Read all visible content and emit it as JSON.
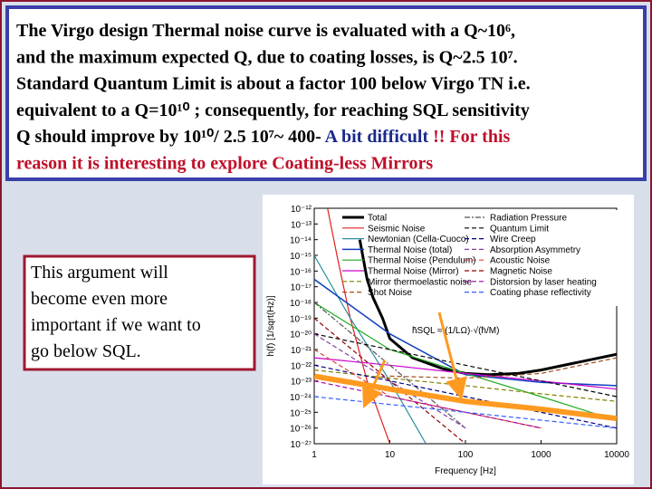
{
  "text_box": {
    "lines": [
      {
        "runs": [
          {
            "text": "The Virgo design Thermal noise curve is evaluated with a Q~10⁶,",
            "color": "#000000"
          }
        ]
      },
      {
        "runs": [
          {
            "text": "and the maximum expected Q, due to coating losses, is Q~2.5 10⁷.",
            "color": "#000000"
          }
        ]
      },
      {
        "runs": [
          {
            "text": "Standard Quantum Limit is about a factor 100 below Virgo TN i.e.",
            "color": "#000000"
          }
        ]
      },
      {
        "runs": [
          {
            "text": "equivalent to a Q=10¹⁰ ; consequently, for reaching SQL sensitivity",
            "color": "#000000"
          }
        ]
      },
      {
        "runs": [
          {
            "text": "Q should improve by 10¹⁰/ 2.5 10⁷~ 400- ",
            "color": "#000000"
          },
          {
            "text": "A bit difficult",
            "color": "#1a2a8a"
          },
          {
            "text": " !! For this",
            "color": "#c0102a"
          }
        ]
      },
      {
        "runs": [
          {
            "text": "reason it is interesting to explore Coating-less Mirrors",
            "color": "#c0102a"
          }
        ]
      }
    ]
  },
  "note": {
    "lines": [
      "This argument will",
      "become even more",
      "important if we want to",
      "go below SQL."
    ]
  },
  "chart_data": {
    "type": "line",
    "xlabel": "Frequency [Hz]",
    "ylabel": "h(f)  [1/sqrt(Hz)]",
    "annotation": "h̃SQL ≈ (1/LΩ)·√(ħ/M)",
    "xscale": "log",
    "yscale": "log",
    "xlim": [
      1,
      10000
    ],
    "ylim": [
      1e-27,
      1e-12
    ],
    "xticks": [
      1,
      10,
      100,
      1000,
      10000
    ],
    "yticks": [
      {
        "value": 1e-12,
        "label": "10⁻¹²"
      },
      {
        "value": 1e-13,
        "label": "10⁻¹³"
      },
      {
        "value": 1e-14,
        "label": "10⁻¹⁴"
      },
      {
        "value": 1e-15,
        "label": "10⁻¹⁵"
      },
      {
        "value": 1e-16,
        "label": "10⁻¹⁶"
      },
      {
        "value": 1e-17,
        "label": "10⁻¹⁷"
      },
      {
        "value": 1e-18,
        "label": "10⁻¹⁸"
      },
      {
        "value": 1e-19,
        "label": "10⁻¹⁹"
      },
      {
        "value": 1e-20,
        "label": "10⁻²⁰"
      },
      {
        "value": 1e-21,
        "label": "10⁻²¹"
      },
      {
        "value": 1e-22,
        "label": "10⁻²²"
      },
      {
        "value": 1e-23,
        "label": "10⁻²³"
      },
      {
        "value": 1e-24,
        "label": "10⁻²⁴"
      },
      {
        "value": 1e-25,
        "label": "10⁻²⁵"
      },
      {
        "value": 1e-26,
        "label": "10⁻²⁶"
      },
      {
        "value": 1e-27,
        "label": "10⁻²⁷"
      }
    ],
    "series": [
      {
        "name": "Total",
        "color": "#000000",
        "width": 3,
        "column": 0,
        "x": [
          4,
          5,
          6,
          8,
          10,
          20,
          50,
          100,
          200,
          500,
          1000,
          3000,
          10000
        ],
        "values": [
          1e-14,
          3e-17,
          2e-18,
          1e-19,
          5e-21,
          3e-22,
          6e-23,
          3e-23,
          2.5e-23,
          3e-23,
          5e-23,
          1.5e-22,
          5e-22
        ]
      },
      {
        "name": "Seismic Noise",
        "color": "#e02020",
        "width": 1.2,
        "column": 0,
        "x": [
          1.5,
          2,
          3,
          5,
          10
        ],
        "values": [
          1e-12,
          1e-15,
          1e-19,
          1e-23,
          1e-27
        ]
      },
      {
        "name": "Newtonian (Cella-Cuoco)",
        "color": "#2a8f9f",
        "width": 1.2,
        "column": 0,
        "x": [
          1,
          3,
          10,
          30
        ],
        "values": [
          1e-15,
          1e-19,
          1e-23,
          1e-27
        ]
      },
      {
        "name": "Thermal Noise (total)",
        "color": "#1040c0",
        "width": 1.5,
        "column": 0,
        "x": [
          1,
          10,
          100,
          1000,
          10000
        ],
        "values": [
          3e-17,
          1e-20,
          2.5e-23,
          8e-24,
          5e-24
        ]
      },
      {
        "name": "Thermal Noise (Pendulum)",
        "color": "#22aa22",
        "width": 1.2,
        "column": 0,
        "x": [
          1,
          10,
          100,
          1000,
          10000
        ],
        "values": [
          1e-18,
          1e-21,
          3e-23,
          1e-24,
          3e-26
        ]
      },
      {
        "name": "Thermal Noise (Mirror)",
        "color": "#cc00cc",
        "width": 1.2,
        "column": 0,
        "x": [
          1,
          10,
          100,
          1000,
          10000
        ],
        "values": [
          3e-22,
          1e-22,
          3e-23,
          1e-23,
          3e-24
        ]
      },
      {
        "name": "Mirror thermoelastic noise",
        "color": "#808000",
        "width": 1.2,
        "dash": "5 3",
        "column": 0,
        "x": [
          1,
          10,
          100,
          1000,
          10000
        ],
        "values": [
          5e-23,
          1.5e-23,
          5e-24,
          1.5e-24,
          5e-25
        ]
      },
      {
        "name": "Shot Noise",
        "color": "#a05020",
        "width": 1.2,
        "dash": "5 3",
        "column": 0,
        "x": [
          10,
          100,
          1000,
          10000
        ],
        "values": [
          2e-23,
          1.5e-23,
          3e-23,
          3e-22
        ]
      },
      {
        "name": "Radiation Pressure",
        "color": "#555555",
        "width": 1.2,
        "dash": "6 2 2 2",
        "column": 1,
        "x": [
          1,
          10,
          100
        ],
        "values": [
          1e-18,
          1e-22,
          1e-26
        ]
      },
      {
        "name": "Quantum Limit",
        "color": "#000000",
        "width": 1.2,
        "dash": "5 3",
        "column": 1,
        "x": [
          1,
          10000
        ],
        "values": [
          1e-20,
          1e-24
        ]
      },
      {
        "name": "Wire Creep",
        "color": "#000080",
        "width": 1.2,
        "dash": "5 3",
        "column": 1,
        "x": [
          1,
          100,
          10000
        ],
        "values": [
          1e-22,
          1e-24,
          1e-26
        ]
      },
      {
        "name": "Absorption Asymmetry",
        "color": "#8040a0",
        "width": 1.2,
        "dash": "5 3",
        "column": 1,
        "x": [
          1,
          10,
          100
        ],
        "values": [
          1e-20,
          1e-23,
          1e-26
        ]
      },
      {
        "name": "Acoustic Noise",
        "color": "#e04040",
        "width": 1.2,
        "dash": "5 3",
        "column": 1,
        "x": [
          1,
          10,
          100,
          1000
        ],
        "values": [
          1e-21,
          1e-24,
          1e-25,
          1e-26
        ]
      },
      {
        "name": "Magnetic Noise",
        "color": "#900000",
        "width": 1.2,
        "dash": "5 3",
        "column": 1,
        "x": [
          1,
          10,
          100
        ],
        "values": [
          1e-19,
          1e-23,
          1e-27
        ]
      },
      {
        "name": "Distorsion by laser heating",
        "color": "#a000a0",
        "width": 1.2,
        "dash": "5 3",
        "column": 1,
        "x": [
          1,
          10,
          100,
          1000
        ],
        "values": [
          1e-23,
          1e-24,
          1e-25,
          1e-26
        ]
      },
      {
        "name": "Coating phase reflectivity",
        "color": "#3060ff",
        "width": 1.2,
        "dash": "5 3",
        "column": 1,
        "x": [
          1,
          100,
          10000
        ],
        "values": [
          1e-24,
          1e-25,
          1e-26
        ]
      },
      {
        "color": "#ff9a20",
        "width": 6,
        "x": [
          1,
          10,
          100,
          1000,
          10000
        ],
        "values": [
          2e-23,
          3e-24,
          5e-25,
          1.6e-25,
          4e-26
        ]
      }
    ]
  }
}
